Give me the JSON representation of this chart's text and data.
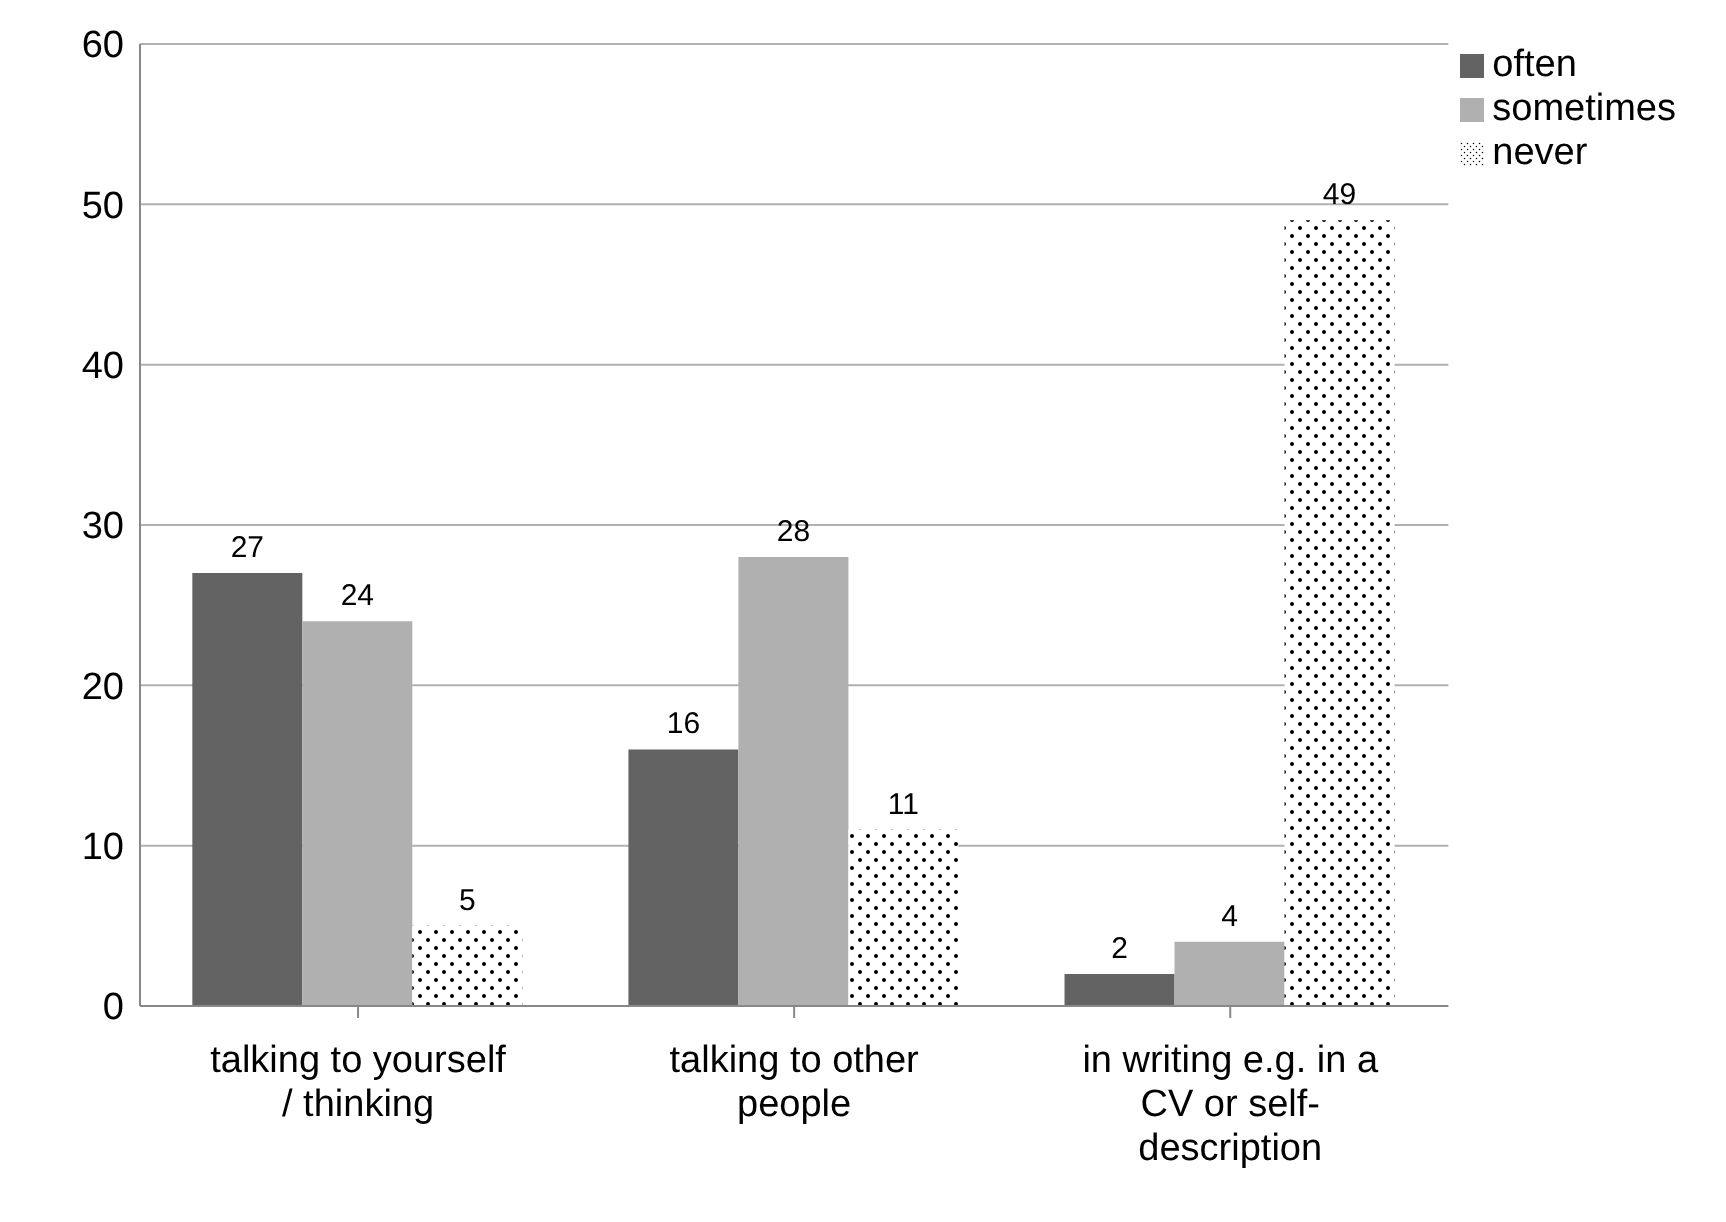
{
  "chart_data": {
    "type": "bar",
    "categories": [
      "talking to yourself / thinking",
      "talking to other people",
      "in writing e.g. in a CV or self-description"
    ],
    "series": [
      {
        "name": "often",
        "color": "#636363",
        "values": [
          27,
          16,
          2
        ]
      },
      {
        "name": "sometimes",
        "color": "#b0b0b0",
        "values": [
          24,
          28,
          4
        ]
      },
      {
        "name": "never",
        "color": "#000000",
        "values": [
          5,
          11,
          49
        ]
      }
    ],
    "ylim": [
      0,
      60
    ],
    "yticks": [
      0,
      10,
      20,
      30,
      40,
      50,
      60
    ],
    "grid": "y",
    "legend": "top right",
    "data_labels": true
  }
}
